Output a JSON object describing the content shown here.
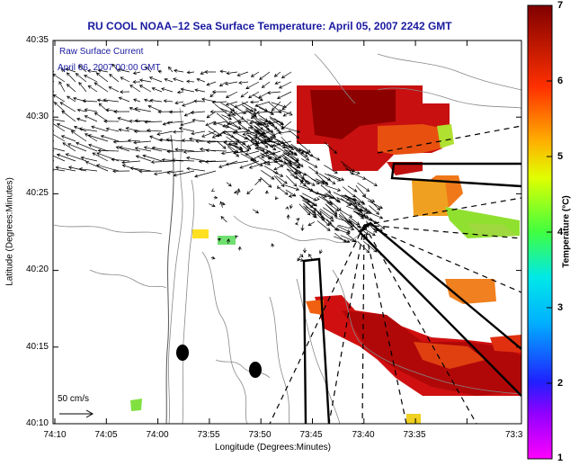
{
  "title": "RU COOL  NOAA–12  Sea Surface Temperature:  April 05, 2007 2242 GMT",
  "overlay": {
    "line1": "Raw Surface Current",
    "line2": "April 06, 2007 00:00 GMT"
  },
  "scale_label": "50 cm/s",
  "x_axis": {
    "label": "Longitude (Degrees:Minutes)",
    "ticks": [
      "74:10",
      "74:05",
      "74:00",
      "73:55",
      "73:50",
      "73:45",
      "73:40",
      "73:35",
      "73:3"
    ]
  },
  "y_axis": {
    "label": "Latitude (Degrees:Minutes)",
    "ticks": [
      "40:35",
      "40:30",
      "40:25",
      "40:20",
      "40:15",
      "40:10"
    ]
  },
  "colorbar": {
    "label": "Temperature (°C)",
    "ticks": [
      "7",
      "6",
      "5",
      "4",
      "3",
      "2",
      "1"
    ],
    "range": [
      1,
      7
    ]
  },
  "colors": {
    "title": "#1a1aa0",
    "land_lines": "#888888",
    "vectors": "#000000"
  }
}
